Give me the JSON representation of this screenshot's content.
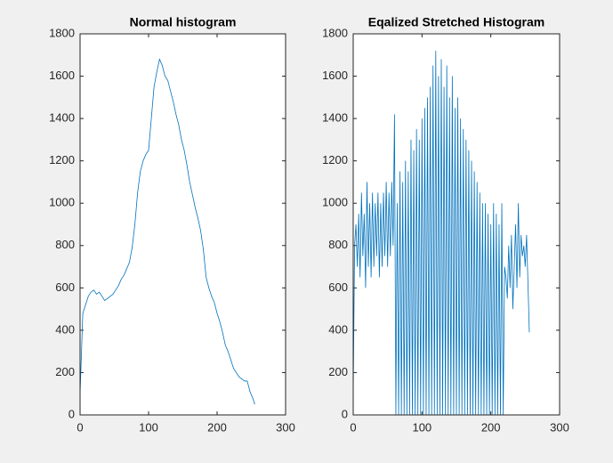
{
  "chart_data": [
    {
      "type": "line",
      "title": "Normal histogram",
      "x": [
        0,
        4,
        8,
        12,
        16,
        20,
        24,
        28,
        32,
        36,
        40,
        44,
        48,
        52,
        56,
        60,
        64,
        68,
        72,
        76,
        80,
        84,
        88,
        92,
        96,
        100,
        104,
        108,
        112,
        116,
        120,
        124,
        128,
        132,
        136,
        140,
        144,
        148,
        152,
        156,
        160,
        164,
        168,
        172,
        176,
        180,
        184,
        188,
        192,
        196,
        200,
        204,
        208,
        212,
        216,
        220,
        224,
        228,
        232,
        236,
        240,
        244,
        248,
        252,
        255
      ],
      "series": [
        {
          "color": "#0072bd",
          "values": [
            100,
            480,
            520,
            560,
            580,
            590,
            570,
            580,
            560,
            540,
            550,
            560,
            570,
            590,
            610,
            640,
            660,
            690,
            720,
            790,
            900,
            1050,
            1150,
            1200,
            1230,
            1250,
            1400,
            1550,
            1620,
            1680,
            1650,
            1600,
            1580,
            1530,
            1480,
            1420,
            1370,
            1300,
            1250,
            1180,
            1100,
            1040,
            980,
            930,
            870,
            780,
            650,
            600,
            560,
            530,
            480,
            440,
            390,
            330,
            300,
            260,
            220,
            200,
            180,
            170,
            160,
            160,
            110,
            80,
            50
          ]
        }
      ],
      "xlim": [
        0,
        300
      ],
      "xticks": [
        0,
        100,
        200,
        300
      ],
      "ylim": [
        0,
        1800
      ],
      "yticks": [
        0,
        200,
        400,
        600,
        800,
        1000,
        1200,
        1400,
        1600,
        1800
      ]
    },
    {
      "type": "line",
      "title": "Eqalized Stretched Histogram",
      "x": [
        0,
        2,
        4,
        6,
        8,
        10,
        12,
        14,
        16,
        18,
        20,
        22,
        24,
        26,
        28,
        30,
        32,
        34,
        36,
        38,
        40,
        42,
        44,
        46,
        48,
        50,
        52,
        54,
        56,
        58,
        60,
        62,
        64,
        66,
        68,
        70,
        72,
        74,
        76,
        78,
        80,
        82,
        84,
        86,
        88,
        90,
        92,
        94,
        96,
        98,
        100,
        102,
        104,
        106,
        108,
        110,
        112,
        114,
        116,
        118,
        120,
        122,
        124,
        126,
        128,
        130,
        132,
        134,
        136,
        138,
        140,
        142,
        144,
        146,
        148,
        150,
        152,
        154,
        156,
        158,
        160,
        162,
        164,
        166,
        168,
        170,
        172,
        174,
        176,
        178,
        180,
        182,
        184,
        186,
        188,
        190,
        192,
        194,
        196,
        198,
        200,
        202,
        204,
        206,
        208,
        210,
        212,
        214,
        216,
        218,
        220,
        222,
        224,
        226,
        228,
        230,
        232,
        234,
        236,
        238,
        240,
        242,
        244,
        246,
        248,
        250,
        252,
        254,
        256
      ],
      "series": [
        {
          "color": "#0072bd",
          "values": [
            100,
            800,
            900,
            700,
            950,
            650,
            1050,
            750,
            950,
            600,
            1100,
            700,
            1000,
            650,
            1050,
            700,
            1000,
            750,
            1050,
            650,
            1000,
            700,
            1050,
            750,
            1100,
            700,
            1050,
            750,
            1100,
            800,
            1420,
            0,
            1000,
            0,
            1150,
            0,
            1100,
            0,
            1200,
            0,
            1150,
            0,
            1300,
            0,
            1250,
            0,
            1350,
            0,
            1300,
            0,
            1400,
            0,
            1450,
            0,
            1500,
            0,
            1550,
            0,
            1650,
            0,
            1720,
            0,
            1600,
            0,
            1680,
            0,
            1550,
            0,
            1650,
            0,
            1500,
            0,
            1600,
            0,
            1450,
            0,
            1500,
            0,
            1400,
            0,
            1350,
            0,
            1300,
            0,
            1250,
            0,
            1200,
            0,
            1150,
            0,
            1100,
            0,
            1050,
            0,
            1000,
            0,
            1000,
            0,
            950,
            0,
            900,
            0,
            1000,
            0,
            950,
            0,
            900,
            0,
            1000,
            0,
            700,
            650,
            550,
            800,
            600,
            850,
            500,
            700,
            900,
            600,
            1000,
            650,
            850,
            750,
            800,
            700,
            850,
            620,
            390
          ]
        }
      ],
      "xlim": [
        0,
        300
      ],
      "xticks": [
        0,
        100,
        200,
        300
      ],
      "ylim": [
        0,
        1800
      ],
      "yticks": [
        0,
        200,
        400,
        600,
        800,
        1000,
        1200,
        1400,
        1600,
        1800
      ]
    }
  ]
}
